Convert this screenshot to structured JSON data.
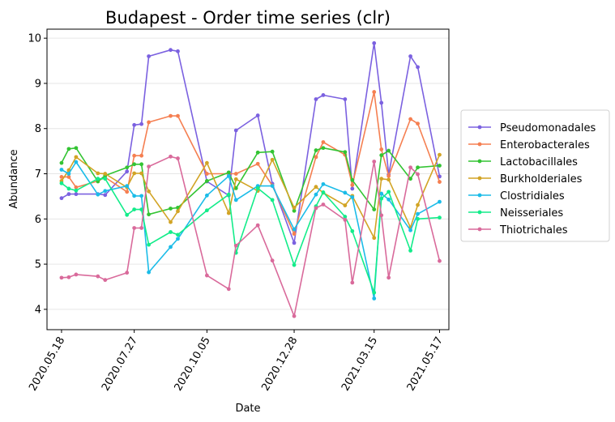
{
  "chart_data": {
    "type": "line",
    "title": "Budapest - Order time series (clr)",
    "xlabel": "Date",
    "ylabel": "Abundance",
    "x_axis_type": "date",
    "xlim": [
      "2020-05-04",
      "2021-05-26"
    ],
    "ylim": [
      3.55,
      10.2
    ],
    "y_ticks": [
      4,
      5,
      6,
      7,
      8,
      9,
      10
    ],
    "x_ticks": [
      {
        "date": "2020-05-18",
        "label": "2020.05.18"
      },
      {
        "date": "2020-07-27",
        "label": "2020.07.27"
      },
      {
        "date": "2020-10-05",
        "label": "2020.10.05"
      },
      {
        "date": "2020-12-28",
        "label": "2020.12.28"
      },
      {
        "date": "2021-03-15",
        "label": "2021.03.15"
      },
      {
        "date": "2021-05-17",
        "label": "2021.05.17"
      }
    ],
    "grid": "horizontal",
    "legend_position": "right",
    "x": [
      "2020-05-18",
      "2020-05-25",
      "2020-06-01",
      "2020-06-22",
      "2020-06-29",
      "2020-07-20",
      "2020-07-27",
      "2020-08-03",
      "2020-08-10",
      "2020-08-31",
      "2020-09-07",
      "2020-10-05",
      "2020-10-26",
      "2020-11-02",
      "2020-11-23",
      "2020-12-07",
      "2020-12-28",
      "2021-01-18",
      "2021-01-25",
      "2021-02-15",
      "2021-02-22",
      "2021-03-15",
      "2021-03-22",
      "2021-03-29",
      "2021-04-19",
      "2021-04-26",
      "2021-05-17"
    ],
    "series": [
      {
        "name": "Pseudomonadales",
        "color": "#7b61e0",
        "values": [
          6.46,
          6.55,
          6.55,
          6.55,
          6.53,
          7.05,
          8.08,
          8.1,
          9.6,
          9.74,
          9.71,
          6.83,
          6.52,
          7.96,
          8.29,
          6.78,
          5.47,
          8.65,
          8.74,
          8.65,
          6.67,
          9.89,
          8.57,
          6.98,
          9.6,
          9.36,
          6.94
        ]
      },
      {
        "name": "Enterobacterales",
        "color": "#f57f51",
        "values": [
          6.93,
          6.93,
          6.7,
          6.84,
          6.92,
          6.6,
          7.4,
          7.4,
          8.14,
          8.28,
          8.28,
          7.0,
          7.0,
          7.0,
          7.22,
          6.74,
          5.67,
          7.37,
          7.7,
          7.42,
          6.75,
          8.81,
          7.54,
          6.95,
          8.21,
          8.11,
          6.82
        ]
      },
      {
        "name": "Lactobacillales",
        "color": "#33c433",
        "values": [
          7.24,
          7.55,
          7.57,
          6.83,
          6.96,
          7.14,
          7.21,
          7.21,
          6.1,
          6.23,
          6.25,
          6.84,
          7.03,
          6.68,
          7.47,
          7.49,
          6.18,
          7.52,
          7.57,
          7.48,
          6.86,
          6.21,
          7.41,
          7.51,
          6.89,
          7.14,
          7.18
        ]
      },
      {
        "name": "Burkholderiales",
        "color": "#d2a425",
        "values": [
          6.84,
          7.08,
          7.37,
          7.01,
          7.0,
          6.7,
          7.01,
          7.01,
          6.61,
          5.93,
          6.17,
          7.24,
          6.13,
          6.88,
          6.62,
          7.31,
          6.25,
          6.71,
          6.58,
          6.3,
          6.51,
          5.58,
          6.89,
          6.87,
          5.81,
          6.31,
          7.42
        ]
      },
      {
        "name": "Clostridiales",
        "color": "#1bbce8",
        "values": [
          7.09,
          7.0,
          7.26,
          6.54,
          6.62,
          6.73,
          6.51,
          6.51,
          4.82,
          5.38,
          5.56,
          6.52,
          6.95,
          6.42,
          6.73,
          6.73,
          5.77,
          6.54,
          6.77,
          6.58,
          6.48,
          4.24,
          6.56,
          6.43,
          5.75,
          6.11,
          6.38
        ]
      },
      {
        "name": "Neisseriales",
        "color": "#13ec8a",
        "values": [
          6.79,
          6.67,
          6.63,
          6.89,
          6.89,
          6.09,
          6.21,
          6.21,
          5.43,
          5.71,
          5.65,
          6.19,
          6.54,
          5.25,
          6.68,
          6.42,
          4.98,
          6.28,
          6.59,
          6.05,
          5.73,
          4.37,
          6.45,
          6.6,
          5.3,
          6.0,
          6.03
        ]
      },
      {
        "name": "Thiotrichales",
        "color": "#d96a9b",
        "values": [
          4.7,
          4.71,
          4.77,
          4.73,
          4.65,
          4.81,
          5.8,
          5.8,
          7.16,
          7.38,
          7.34,
          4.75,
          4.45,
          5.41,
          5.86,
          5.08,
          3.85,
          6.24,
          6.32,
          5.98,
          4.59,
          7.27,
          6.08,
          4.7,
          7.14,
          6.99,
          5.07
        ]
      }
    ]
  }
}
